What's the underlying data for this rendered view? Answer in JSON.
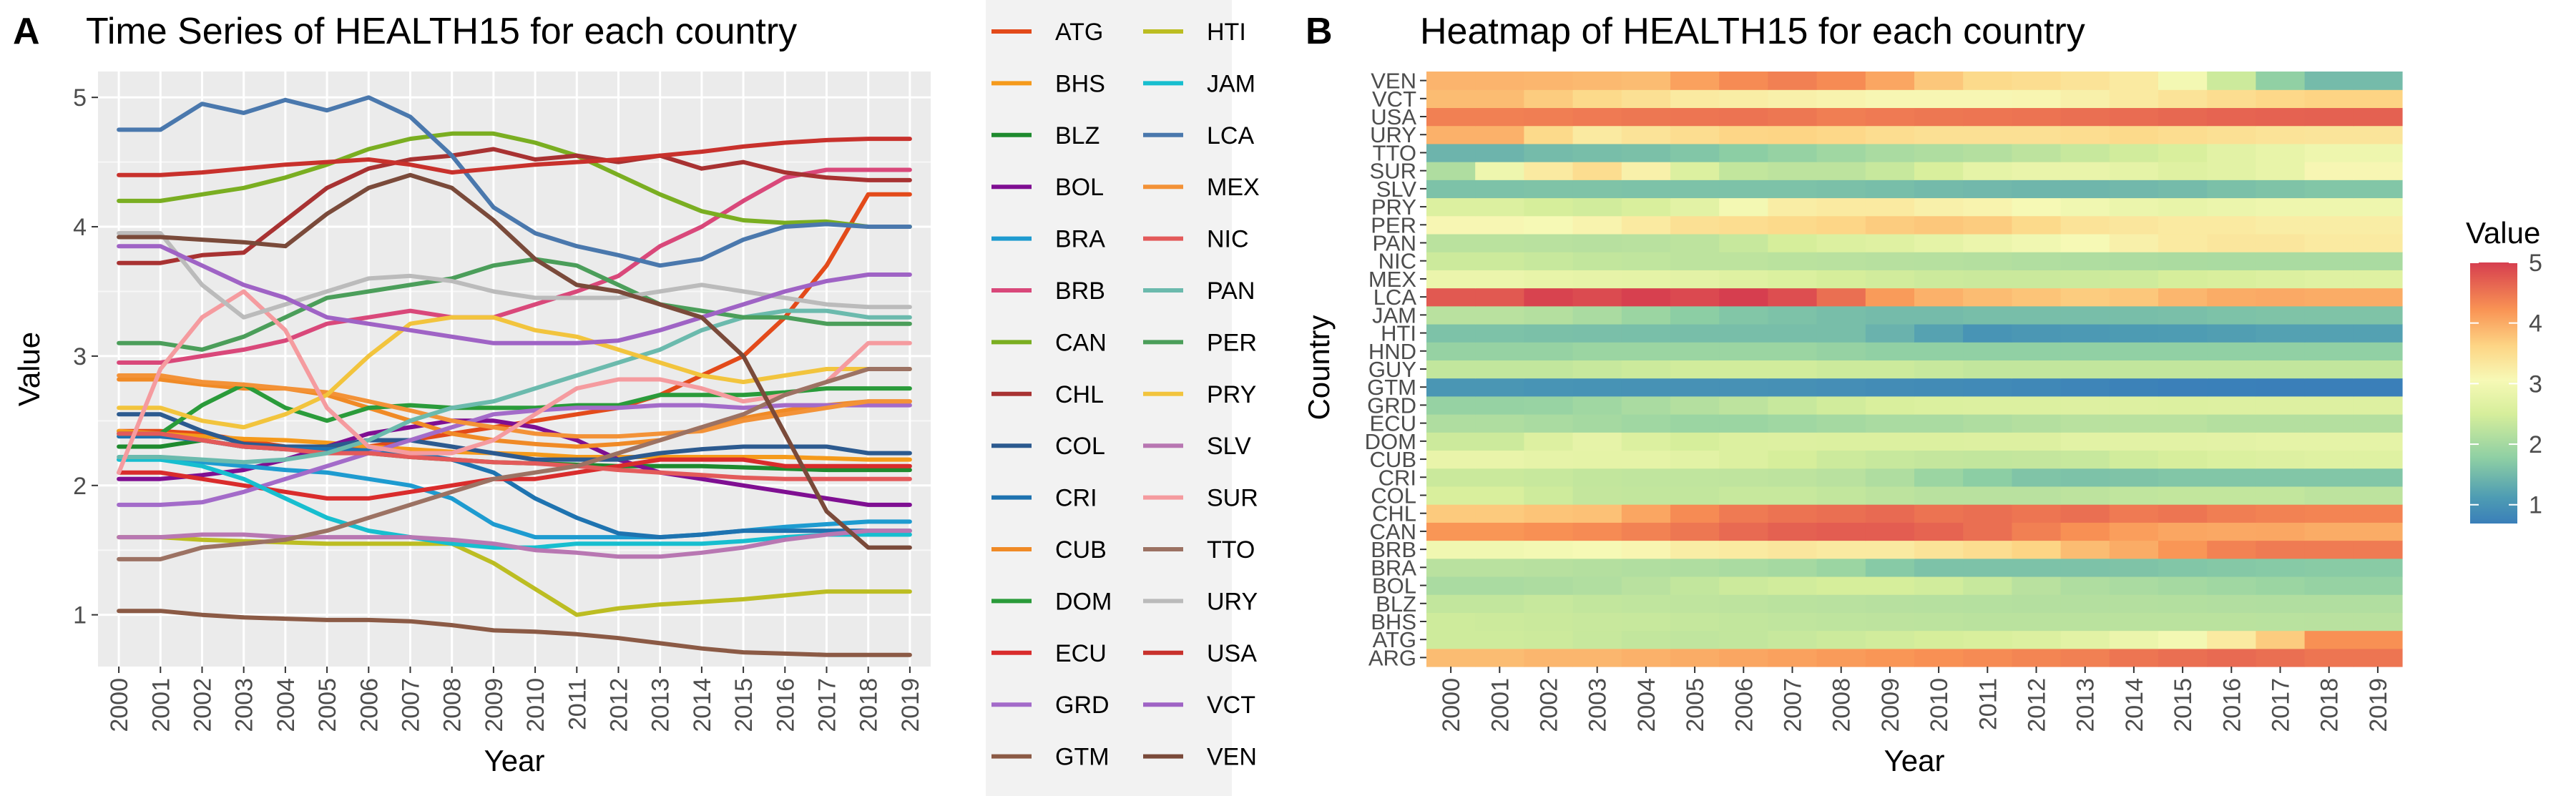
{
  "panel_a": {
    "letter": "A",
    "title": "Time Series of HEALTH15 for each country",
    "xlabel": "Year",
    "ylabel": "Value"
  },
  "panel_b": {
    "letter": "B",
    "title": "Heatmap of HEALTH15 for each country",
    "xlabel": "Year",
    "ylabel": "Country",
    "legend_title": "Value"
  },
  "chart_data": [
    {
      "type": "line",
      "title": "Time Series of HEALTH15 for each country",
      "xlabel": "Year",
      "ylabel": "Value",
      "x": [
        "2000",
        "2001",
        "2002",
        "2003",
        "2004",
        "2005",
        "2006",
        "2007",
        "2008",
        "2009",
        "2010",
        "2011",
        "2012",
        "2013",
        "2014",
        "2015",
        "2016",
        "2017",
        "2018",
        "2019"
      ],
      "ylim": [
        0.6,
        5.2
      ],
      "yticks": [
        1,
        2,
        3,
        4,
        5
      ],
      "grid": true,
      "legend_position": "right",
      "series": [
        {
          "name": "ATG",
          "color": "#E34A1A",
          "values": [
            2.42,
            2.42,
            2.4,
            2.35,
            2.3,
            2.28,
            2.3,
            2.35,
            2.4,
            2.45,
            2.5,
            2.55,
            2.6,
            2.7,
            2.85,
            3.0,
            3.3,
            3.7,
            4.25,
            4.25
          ]
        },
        {
          "name": "BHS",
          "color": "#F59A1B",
          "values": [
            2.42,
            2.4,
            2.38,
            2.36,
            2.35,
            2.33,
            2.3,
            2.28,
            2.26,
            2.25,
            2.24,
            2.22,
            2.22,
            2.22,
            2.22,
            2.22,
            2.22,
            2.21,
            2.2,
            2.2
          ]
        },
        {
          "name": "BLZ",
          "color": "#1E8A2E",
          "values": [
            2.3,
            2.3,
            2.35,
            2.3,
            2.28,
            2.27,
            2.25,
            2.22,
            2.2,
            2.18,
            2.17,
            2.16,
            2.15,
            2.15,
            2.15,
            2.14,
            2.13,
            2.12,
            2.12,
            2.12
          ]
        },
        {
          "name": "BOL",
          "color": "#7F0F92",
          "values": [
            2.05,
            2.05,
            2.08,
            2.12,
            2.2,
            2.3,
            2.4,
            2.45,
            2.5,
            2.5,
            2.45,
            2.35,
            2.2,
            2.1,
            2.05,
            2.0,
            1.95,
            1.9,
            1.85,
            1.85
          ]
        },
        {
          "name": "BRA",
          "color": "#1E9BD0",
          "values": [
            2.2,
            2.2,
            2.18,
            2.15,
            2.12,
            2.1,
            2.05,
            2.0,
            1.9,
            1.7,
            1.6,
            1.6,
            1.6,
            1.6,
            1.62,
            1.65,
            1.68,
            1.7,
            1.72,
            1.72
          ]
        },
        {
          "name": "BRB",
          "color": "#D9487A",
          "values": [
            2.95,
            2.95,
            3.0,
            3.05,
            3.12,
            3.25,
            3.3,
            3.35,
            3.3,
            3.3,
            3.4,
            3.5,
            3.62,
            3.85,
            4.0,
            4.2,
            4.38,
            4.44,
            4.44,
            4.44
          ]
        },
        {
          "name": "CAN",
          "color": "#7AAE21",
          "values": [
            4.2,
            4.2,
            4.25,
            4.3,
            4.38,
            4.48,
            4.6,
            4.68,
            4.72,
            4.72,
            4.65,
            4.55,
            4.4,
            4.25,
            4.12,
            4.05,
            4.03,
            4.04,
            4.0,
            4.0
          ]
        },
        {
          "name": "CHL",
          "color": "#A83232",
          "values": [
            3.72,
            3.72,
            3.78,
            3.8,
            4.05,
            4.3,
            4.45,
            4.52,
            4.55,
            4.6,
            4.52,
            4.55,
            4.5,
            4.55,
            4.45,
            4.5,
            4.42,
            4.38,
            4.36,
            4.36
          ]
        },
        {
          "name": "COL",
          "color": "#2C5A8F",
          "values": [
            2.55,
            2.55,
            2.42,
            2.32,
            2.3,
            2.3,
            2.35,
            2.35,
            2.3,
            2.25,
            2.2,
            2.2,
            2.2,
            2.25,
            2.28,
            2.3,
            2.3,
            2.3,
            2.25,
            2.25
          ]
        },
        {
          "name": "CRI",
          "color": "#1E73B0",
          "values": [
            2.38,
            2.38,
            2.35,
            2.3,
            2.28,
            2.28,
            2.27,
            2.25,
            2.2,
            2.1,
            1.9,
            1.75,
            1.63,
            1.6,
            1.62,
            1.65,
            1.65,
            1.65,
            1.65,
            1.65
          ]
        },
        {
          "name": "CUB",
          "color": "#F08A26",
          "values": [
            2.82,
            2.82,
            2.78,
            2.75,
            2.75,
            2.7,
            2.6,
            2.5,
            2.4,
            2.35,
            2.32,
            2.3,
            2.32,
            2.35,
            2.45,
            2.52,
            2.58,
            2.62,
            2.65,
            2.65
          ]
        },
        {
          "name": "DOM",
          "color": "#2A9B3A",
          "values": [
            2.4,
            2.4,
            2.62,
            2.78,
            2.6,
            2.5,
            2.6,
            2.62,
            2.6,
            2.6,
            2.6,
            2.62,
            2.62,
            2.7,
            2.7,
            2.7,
            2.72,
            2.75,
            2.75,
            2.75
          ]
        },
        {
          "name": "ECU",
          "color": "#D92C2C",
          "values": [
            2.1,
            2.1,
            2.05,
            2.0,
            1.95,
            1.9,
            1.9,
            1.95,
            2.0,
            2.05,
            2.05,
            2.1,
            2.15,
            2.2,
            2.2,
            2.2,
            2.15,
            2.15,
            2.15,
            2.15
          ]
        },
        {
          "name": "GRD",
          "color": "#A36BC9",
          "values": [
            1.85,
            1.85,
            1.87,
            1.95,
            2.05,
            2.15,
            2.25,
            2.35,
            2.45,
            2.55,
            2.58,
            2.6,
            2.6,
            2.62,
            2.62,
            2.6,
            2.62,
            2.62,
            2.62,
            2.62
          ]
        },
        {
          "name": "GTM",
          "color": "#8B5A45",
          "values": [
            1.03,
            1.03,
            1.0,
            0.98,
            0.97,
            0.96,
            0.96,
            0.95,
            0.92,
            0.88,
            0.87,
            0.85,
            0.82,
            0.78,
            0.74,
            0.71,
            0.7,
            0.69,
            0.69,
            0.69
          ]
        },
        {
          "name": "HTI",
          "color": "#BCBD22",
          "values": [
            1.6,
            1.6,
            1.58,
            1.57,
            1.56,
            1.55,
            1.55,
            1.55,
            1.55,
            1.4,
            1.2,
            1.0,
            1.05,
            1.08,
            1.1,
            1.12,
            1.15,
            1.18,
            1.18,
            1.18
          ]
        },
        {
          "name": "JAM",
          "color": "#17BECF",
          "values": [
            2.2,
            2.2,
            2.15,
            2.05,
            1.9,
            1.75,
            1.65,
            1.6,
            1.55,
            1.52,
            1.52,
            1.55,
            1.55,
            1.55,
            1.55,
            1.57,
            1.6,
            1.62,
            1.62,
            1.62
          ]
        },
        {
          "name": "LCA",
          "color": "#4A78AD",
          "values": [
            4.75,
            4.75,
            4.95,
            4.88,
            4.98,
            4.9,
            5.0,
            4.85,
            4.55,
            4.15,
            3.95,
            3.85,
            3.78,
            3.7,
            3.75,
            3.9,
            4.0,
            4.02,
            4.0,
            4.0
          ]
        },
        {
          "name": "MEX",
          "color": "#F39237",
          "values": [
            2.85,
            2.85,
            2.8,
            2.78,
            2.75,
            2.72,
            2.65,
            2.58,
            2.5,
            2.45,
            2.4,
            2.38,
            2.38,
            2.4,
            2.42,
            2.5,
            2.55,
            2.6,
            2.65,
            2.65
          ]
        },
        {
          "name": "NIC",
          "color": "#E35A5A",
          "values": [
            2.4,
            2.4,
            2.35,
            2.3,
            2.28,
            2.25,
            2.25,
            2.22,
            2.2,
            2.18,
            2.17,
            2.15,
            2.12,
            2.1,
            2.08,
            2.06,
            2.05,
            2.05,
            2.05,
            2.05
          ]
        },
        {
          "name": "PAN",
          "color": "#6BBAAD",
          "values": [
            2.22,
            2.22,
            2.2,
            2.18,
            2.2,
            2.25,
            2.35,
            2.5,
            2.6,
            2.65,
            2.75,
            2.85,
            2.95,
            3.05,
            3.2,
            3.3,
            3.35,
            3.35,
            3.3,
            3.3
          ]
        },
        {
          "name": "PER",
          "color": "#4B9E5A",
          "values": [
            3.1,
            3.1,
            3.05,
            3.15,
            3.3,
            3.45,
            3.5,
            3.55,
            3.6,
            3.7,
            3.75,
            3.7,
            3.55,
            3.4,
            3.35,
            3.3,
            3.3,
            3.25,
            3.25,
            3.25
          ]
        },
        {
          "name": "PRY",
          "color": "#F2C43D",
          "values": [
            2.6,
            2.6,
            2.5,
            2.45,
            2.55,
            2.7,
            3.0,
            3.25,
            3.3,
            3.3,
            3.2,
            3.15,
            3.05,
            2.95,
            2.85,
            2.8,
            2.85,
            2.9,
            2.9,
            2.9
          ]
        },
        {
          "name": "SLV",
          "color": "#B877B2",
          "values": [
            1.6,
            1.6,
            1.62,
            1.62,
            1.6,
            1.6,
            1.6,
            1.6,
            1.58,
            1.55,
            1.5,
            1.48,
            1.45,
            1.45,
            1.48,
            1.52,
            1.58,
            1.62,
            1.65,
            1.65
          ]
        },
        {
          "name": "SUR",
          "color": "#F59B9F",
          "values": [
            2.1,
            2.9,
            3.3,
            3.5,
            3.2,
            2.6,
            2.3,
            2.25,
            2.25,
            2.35,
            2.55,
            2.75,
            2.82,
            2.82,
            2.75,
            2.65,
            2.7,
            2.8,
            3.1,
            3.1
          ]
        },
        {
          "name": "TTO",
          "color": "#9C7263",
          "values": [
            1.43,
            1.43,
            1.52,
            1.55,
            1.58,
            1.65,
            1.75,
            1.85,
            1.95,
            2.05,
            2.1,
            2.15,
            2.25,
            2.35,
            2.45,
            2.55,
            2.7,
            2.8,
            2.9,
            2.9
          ]
        },
        {
          "name": "URY",
          "color": "#BBBBBB",
          "values": [
            3.95,
            3.95,
            3.55,
            3.3,
            3.4,
            3.5,
            3.6,
            3.62,
            3.58,
            3.5,
            3.45,
            3.45,
            3.45,
            3.5,
            3.55,
            3.5,
            3.45,
            3.4,
            3.38,
            3.38
          ]
        },
        {
          "name": "USA",
          "color": "#C8312C",
          "values": [
            4.4,
            4.4,
            4.42,
            4.45,
            4.48,
            4.5,
            4.52,
            4.48,
            4.42,
            4.45,
            4.48,
            4.5,
            4.52,
            4.55,
            4.58,
            4.62,
            4.65,
            4.67,
            4.68,
            4.68
          ]
        },
        {
          "name": "VCT",
          "color": "#9F63C5",
          "values": [
            3.85,
            3.85,
            3.7,
            3.55,
            3.45,
            3.3,
            3.25,
            3.2,
            3.15,
            3.1,
            3.1,
            3.1,
            3.12,
            3.2,
            3.3,
            3.4,
            3.5,
            3.58,
            3.63,
            3.63
          ]
        },
        {
          "name": "VEN",
          "color": "#7A4A3A",
          "values": [
            3.92,
            3.92,
            3.9,
            3.88,
            3.85,
            4.1,
            4.3,
            4.4,
            4.3,
            4.05,
            3.75,
            3.55,
            3.5,
            3.4,
            3.3,
            3.0,
            2.4,
            1.8,
            1.52,
            1.52
          ]
        }
      ]
    },
    {
      "type": "heatmap",
      "title": "Heatmap of HEALTH15 for each country",
      "xlabel": "Year",
      "ylabel": "Country",
      "x": [
        "2000",
        "2001",
        "2002",
        "2003",
        "2004",
        "2005",
        "2006",
        "2007",
        "2008",
        "2009",
        "2010",
        "2011",
        "2012",
        "2013",
        "2014",
        "2015",
        "2016",
        "2017",
        "2018",
        "2019"
      ],
      "y": [
        "ARG",
        "ATG",
        "BHS",
        "BLZ",
        "BOL",
        "BRA",
        "BRB",
        "CAN",
        "CHL",
        "COL",
        "CRI",
        "CUB",
        "DOM",
        "ECU",
        "GRD",
        "GTM",
        "GUY",
        "HND",
        "HTI",
        "JAM",
        "LCA",
        "MEX",
        "NIC",
        "PAN",
        "PER",
        "PRY",
        "SLV",
        "SUR",
        "TTO",
        "URY",
        "USA",
        "VCT",
        "VEN"
      ],
      "colorbar": {
        "title": "Value",
        "range": [
          0.69,
          5.0
        ],
        "ticks": [
          1,
          2,
          3,
          4,
          5
        ]
      },
      "values": [
        [
          3.85,
          3.85,
          3.9,
          3.9,
          3.95,
          4.0,
          4.05,
          4.1,
          4.15,
          4.2,
          4.25,
          4.3,
          4.35,
          4.4,
          4.5,
          4.55,
          4.6,
          4.55,
          4.5,
          4.5
        ],
        "ATG",
        "BHS",
        "BLZ",
        "BOL",
        "BRA",
        "BRB",
        "CAN",
        "CHL",
        "COL",
        "CRI",
        "CUB",
        "DOM",
        "ECU",
        "GRD",
        "GTM",
        [
          2.3,
          2.3,
          2.3,
          2.35,
          2.4,
          2.45,
          2.45,
          2.45,
          2.4,
          2.4,
          2.35,
          2.3,
          2.3,
          2.3,
          2.3,
          2.3,
          2.3,
          2.3,
          2.3,
          2.3
        ],
        [
          1.85,
          1.85,
          1.85,
          1.9,
          1.9,
          1.9,
          1.9,
          1.9,
          1.85,
          1.8,
          1.8,
          1.8,
          1.8,
          1.8,
          1.8,
          1.8,
          1.8,
          1.8,
          1.8,
          1.8
        ],
        "HTI",
        "JAM",
        "LCA",
        "MEX",
        "NIC",
        "PAN",
        "PER",
        "PRY",
        "SLV",
        "SUR",
        "TTO",
        "URY",
        "USA",
        "VCT",
        "VEN"
      ]
    }
  ]
}
